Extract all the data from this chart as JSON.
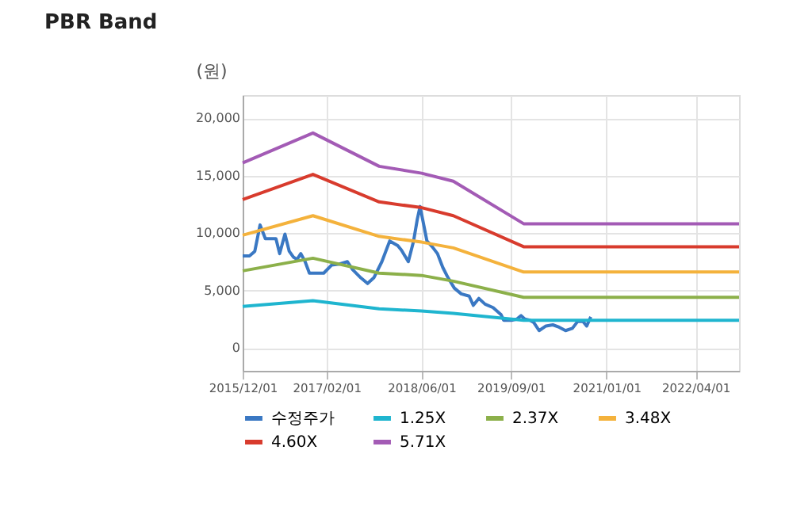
{
  "chart_data": {
    "type": "line",
    "title": "PBR Band",
    "ylabel": "(원)",
    "x": [
      "2015-12-01",
      "2016-11-24",
      "2017-10-28",
      "2018-06-02",
      "2018-11-11",
      "2019-11-05",
      "2022-11-09"
    ],
    "series": [
      {
        "name": "수정주가",
        "color": "#3a78c3",
        "x": [
          "2015-12-01",
          "2016-01-05",
          "2016-02-01",
          "2016-02-28",
          "2016-03-26",
          "2016-04-22",
          "2016-05-19",
          "2016-06-07",
          "2016-07-04",
          "2016-07-26",
          "2016-08-16",
          "2016-09-04",
          "2016-09-23",
          "2016-10-15",
          "2016-11-06",
          "2016-12-08",
          "2017-01-18",
          "2017-02-27",
          "2017-04-09",
          "2017-05-19",
          "2017-06-15",
          "2017-07-26",
          "2017-08-30",
          "2017-10-01",
          "2017-11-11",
          "2017-12-21",
          "2018-01-31",
          "2018-02-19",
          "2018-03-26",
          "2018-04-22",
          "2018-05-11",
          "2018-05-25",
          "2018-06-07",
          "2018-06-29",
          "2018-07-26",
          "2018-08-22",
          "2018-09-18",
          "2018-10-15",
          "2018-11-16",
          "2018-12-21",
          "2019-01-31",
          "2019-02-21",
          "2019-03-21",
          "2019-04-22",
          "2019-06-02",
          "2019-07-12",
          "2019-07-26",
          "2019-09-04",
          "2019-10-01",
          "2019-10-23",
          "2019-11-11",
          "2019-12-08",
          "2019-12-27",
          "2020-01-23",
          "2020-02-27",
          "2020-04-02",
          "2020-05-04",
          "2020-06-06",
          "2020-07-11",
          "2020-08-07",
          "2020-09-03",
          "2020-09-22",
          "2020-10-13"
        ],
        "values": [
          8000,
          8000,
          8400,
          10700,
          9500,
          9500,
          9500,
          8200,
          9900,
          8400,
          7900,
          7700,
          8200,
          7500,
          6500,
          6500,
          6500,
          7200,
          7300,
          7500,
          6800,
          6100,
          5600,
          6100,
          7500,
          9300,
          8900,
          8500,
          7500,
          9300,
          11200,
          12300,
          11200,
          9300,
          8800,
          8200,
          7000,
          6100,
          5200,
          4700,
          4500,
          3700,
          4300,
          3800,
          3500,
          2900,
          2400,
          2400,
          2500,
          2800,
          2500,
          2400,
          2200,
          1500,
          1900,
          2000,
          1800,
          1500,
          1700,
          2300,
          2300,
          1900,
          2700
        ]
      },
      {
        "name": "1.25X",
        "color": "#1fb5cf",
        "values": [
          3600,
          4100,
          3400,
          3200,
          3000,
          2400,
          2400
        ]
      },
      {
        "name": "2.37X",
        "color": "#8cb04a",
        "values": [
          6700,
          7800,
          6500,
          6300,
          5800,
          4400,
          4400
        ]
      },
      {
        "name": "3.48X",
        "color": "#f4b23c",
        "values": [
          9800,
          11500,
          9700,
          9200,
          8700,
          6600,
          6600
        ]
      },
      {
        "name": "4.60X",
        "color": "#d83b2d",
        "values": [
          12900,
          15100,
          12700,
          12200,
          11500,
          8800,
          8800
        ]
      },
      {
        "name": "5.71X",
        "color": "#a35bb5",
        "values": [
          16100,
          18700,
          15800,
          15200,
          14500,
          10800,
          10800
        ]
      }
    ],
    "xlim": [
      "2015-12-01",
      "2022-11-09"
    ],
    "xticks": [
      {
        "value": "2015-12-01",
        "label": "2015/12/01"
      },
      {
        "value": "2017-02-01",
        "label": "2017/02/01"
      },
      {
        "value": "2018-06-01",
        "label": "2018/06/01"
      },
      {
        "value": "2019-09-01",
        "label": "2019/09/01"
      },
      {
        "value": "2021-01-01",
        "label": "2021/01/01"
      },
      {
        "value": "2022-04-01",
        "label": "2022/04/01"
      }
    ],
    "ylim": [
      -2000,
      22000
    ],
    "yticks": [
      {
        "value": 0,
        "label": "0"
      },
      {
        "value": 5000,
        "label": "5,000"
      },
      {
        "value": 10000,
        "label": "10,000"
      },
      {
        "value": 15000,
        "label": "15,000"
      },
      {
        "value": 20000,
        "label": "20,000"
      }
    ],
    "grid": true,
    "legend": "bottom",
    "marker": "none",
    "line_style": "solid"
  }
}
